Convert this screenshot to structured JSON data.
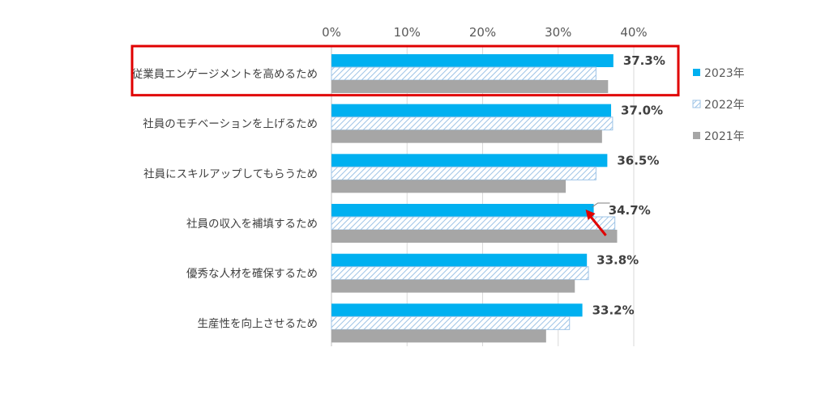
{
  "chart_data": {
    "type": "bar",
    "orientation": "horizontal",
    "categories": [
      "従業員エンゲージメントを高めるため",
      "社員のモチベーションを上げるため",
      "社員にスキルアップしてもらうため",
      "社員の収入を補填するため",
      "優秀な人材を確保するため",
      "生産性を向上させるため"
    ],
    "series": [
      {
        "name": "2023年",
        "color": "#00b0f0",
        "fill": "solid",
        "values": [
          37.3,
          37.0,
          36.5,
          34.7,
          33.8,
          33.2
        ]
      },
      {
        "name": "2022年",
        "color": "#9dc3e6",
        "fill": "hatched",
        "values": [
          35.0,
          37.2,
          35.0,
          37.5,
          34.0,
          31.5
        ]
      },
      {
        "name": "2021年",
        "color": "#a6a6a6",
        "fill": "solid",
        "values": [
          36.6,
          35.8,
          31.0,
          37.8,
          32.2,
          28.4
        ]
      }
    ],
    "value_labels": [
      "37.3%",
      "37.0%",
      "36.5%",
      "34.7%",
      "33.8%",
      "33.2%"
    ],
    "xlim": [
      0,
      40
    ],
    "xticks": [
      "0%",
      "10%",
      "20%",
      "30%",
      "40%"
    ],
    "xaxis_position": "top",
    "grid": true,
    "legend_position": "right",
    "highlight_category": "従業員エンゲージメントを高めるため",
    "highlight_color": "#e00000",
    "arrow_category": "社員の収入を補填するため"
  }
}
